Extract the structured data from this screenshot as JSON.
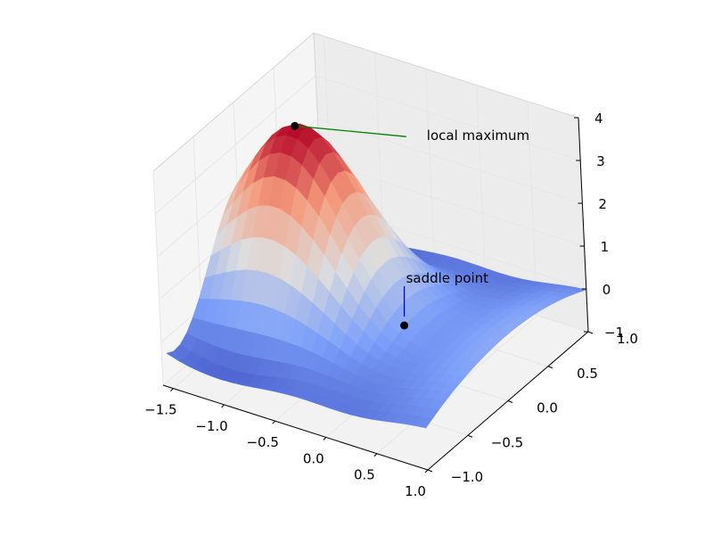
{
  "chart_data": {
    "type": "surface3d",
    "x_ticks": [
      "−1.5",
      "−1.0",
      "−0.5",
      "0.0",
      "0.5",
      "1.0"
    ],
    "y_ticks": [
      "−1.0",
      "−0.5",
      "0.0",
      "0.5",
      "1.0"
    ],
    "z_ticks": [
      "−1",
      "0",
      "1",
      "2",
      "3",
      "4"
    ],
    "xlim": [
      -1.6,
      1.0
    ],
    "ylim": [
      -1.0,
      1.0
    ],
    "zlim": [
      -1,
      4
    ],
    "colormap": "coolwarm",
    "grid": true,
    "annotations": [
      {
        "label": "local maximum",
        "x": -1.0,
        "y": 0.0,
        "z": 3.9,
        "color": "#008000"
      },
      {
        "label": "saddle point",
        "x": 0.0,
        "y": 0.0,
        "z": 0.0,
        "color": "#0000ff"
      }
    ]
  }
}
